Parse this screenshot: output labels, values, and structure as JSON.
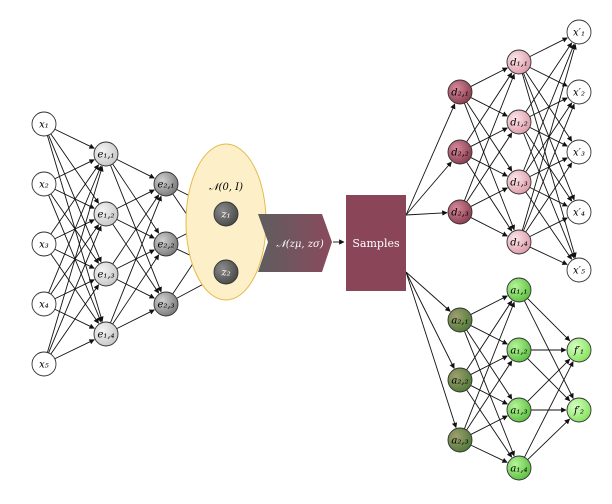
{
  "labels": {
    "x1": "x₁",
    "x2": "x₂",
    "x3": "x₃",
    "x4": "x₄",
    "x5": "x₅",
    "e11": "e₁,₁",
    "e12": "e₁,₂",
    "e13": "e₁,₃",
    "e14": "e₁,₄",
    "e21": "e₂,₁",
    "e22": "e₂,₂",
    "e23": "e₂,₃",
    "z1": "z₁",
    "z2": "z₂",
    "prior": "𝒩(0, I)",
    "gaussian": "𝒩(zμ, zσ)",
    "samples": "Samples",
    "d21": "d₂,₁",
    "d22": "d₂,₂",
    "d23": "d₂,₃",
    "d11": "d₁,₁",
    "d12": "d₁,₂",
    "d13": "d₁,₃",
    "d14": "d₁,₄",
    "xp1": "x′₁",
    "xp2": "x′₂",
    "xp3": "x′₃",
    "xp4": "x′₄",
    "xp5": "x′₅",
    "a21": "a₂,₁",
    "a22": "a₂,₂",
    "a23": "a₂,₃",
    "a11": "a₁,₁",
    "a12": "a₁,₂",
    "a13": "a₁,₃",
    "a14": "a₁,₄",
    "fp1": "f′₁",
    "fp2": "f′₂"
  },
  "colors": {
    "input": "#ffffff",
    "encoder_light": "#d8d8d8",
    "encoder_dark": "#8c8c8c",
    "latent": "#5a5a5a",
    "prior_fill": "#fdf0c8",
    "prior_stroke": "#e7b94a",
    "samples": "#8a4658",
    "decoder_dark": "#9a4c5e",
    "decoder_light": "#efc0ca",
    "aux_dark": "#5f8a44",
    "aux_light": "#8ede6a",
    "output_green": "#9ef07a"
  }
}
